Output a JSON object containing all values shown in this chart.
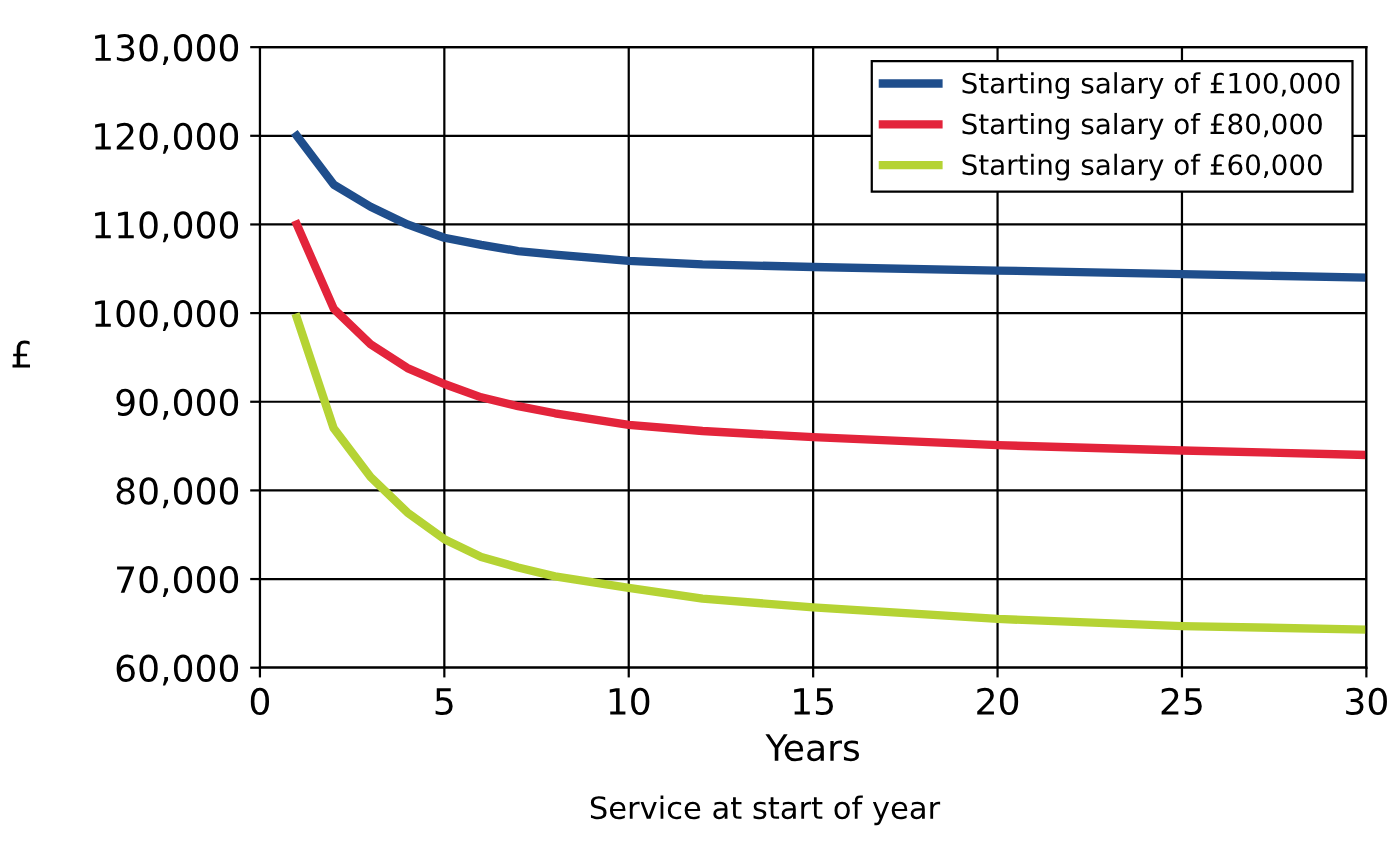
{
  "chart_data": {
    "type": "line",
    "xlabel": "Years",
    "ylabel": "£",
    "annotations": [
      "Service at start of year"
    ],
    "xlim": [
      0,
      30
    ],
    "xticks": [
      0,
      5,
      10,
      15,
      20,
      25,
      30
    ],
    "ylim": [
      60000,
      130000
    ],
    "yticks": [
      {
        "value": 60000,
        "label": "60,000"
      },
      {
        "value": 70000,
        "label": "70,000"
      },
      {
        "value": 80000,
        "label": "80,000"
      },
      {
        "value": 90000,
        "label": "90,000"
      },
      {
        "value": 100000,
        "label": "100,000"
      },
      {
        "value": 110000,
        "label": "110,000"
      },
      {
        "value": 120000,
        "label": "120,000"
      },
      {
        "value": 130000,
        "label": "130,000"
      }
    ],
    "grid": true,
    "legend": "top right",
    "marker": "none",
    "line_style": "solid",
    "x": [
      1,
      2,
      3,
      4,
      5,
      6,
      7,
      8,
      10,
      12,
      15,
      20,
      25,
      30
    ],
    "series": [
      {
        "name": "Starting salary of £100,000",
        "color": "#1f4e8c",
        "values": [
          120000,
          114500,
          112000,
          110000,
          108500,
          107700,
          107000,
          106600,
          105900,
          105500,
          105200,
          104800,
          104400,
          104000
        ]
      },
      {
        "name": "Starting salary of £80,000",
        "color": "#e3243b",
        "values": [
          110000,
          100500,
          96500,
          93800,
          92000,
          90500,
          89500,
          88700,
          87400,
          86700,
          86000,
          85100,
          84500,
          84000
        ]
      },
      {
        "name": "Starting salary of £60,000",
        "color": "#b5d334",
        "values": [
          99500,
          87000,
          81500,
          77500,
          74500,
          72500,
          71300,
          70300,
          69000,
          67800,
          66800,
          65500,
          64700,
          64300
        ]
      }
    ]
  }
}
